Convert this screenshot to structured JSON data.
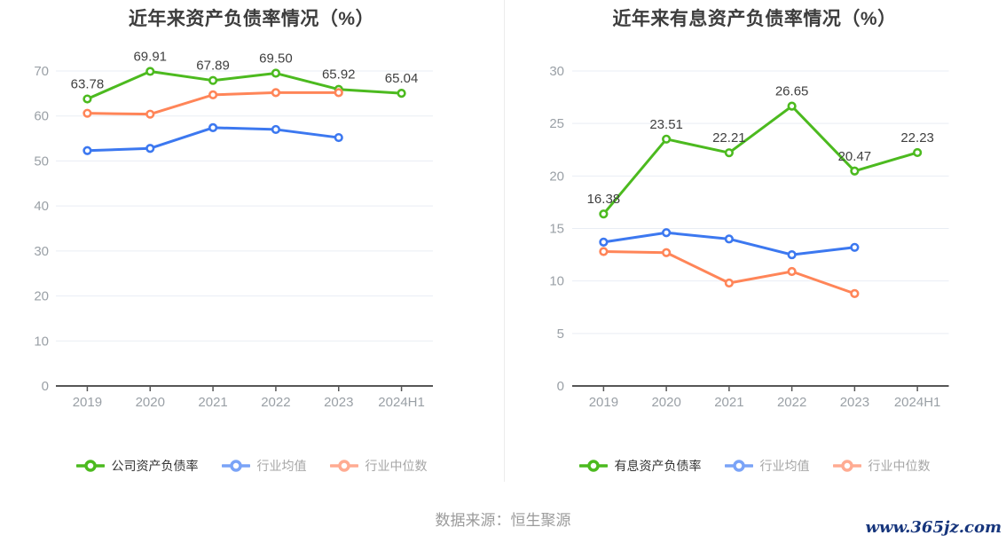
{
  "page": {
    "footer_source": "数据来源：恒生聚源",
    "website": "www.365jz.com",
    "background": "#ffffff"
  },
  "colors": {
    "company_line": "#4cba1f",
    "industry_mean_line": "#3c78f0",
    "industry_median_line": "#ff8558",
    "axis_label": "#9aa0a6",
    "data_label": "#3f3f3f",
    "website_link": "#16357c"
  },
  "chart_data": [
    {
      "type": "line",
      "title": "近年来资产负债率情况（%）",
      "categories": [
        "2019",
        "2020",
        "2021",
        "2022",
        "2023",
        "2024H1"
      ],
      "xlabel": "",
      "ylabel": "",
      "ylim": [
        0,
        70
      ],
      "ytick_step": 10,
      "grid": true,
      "legend_position": "bottom",
      "series": [
        {
          "name": "公司资产负债率",
          "color": "#4cba1f",
          "legend_color": "#4cba1f",
          "label_color": "#333333",
          "values": [
            63.78,
            69.91,
            67.89,
            69.5,
            65.92,
            65.04
          ],
          "point_labels": [
            "63.78",
            "69.91",
            "67.89",
            "69.50",
            "65.92",
            "65.04"
          ]
        },
        {
          "name": "行业均值",
          "color": "#3c78f0",
          "legend_color": "#7aa3f7",
          "label_color": "#a6a6a6",
          "values": [
            52.3,
            52.8,
            57.4,
            57.0,
            55.2,
            null
          ],
          "point_labels": null
        },
        {
          "name": "行业中位数",
          "color": "#ff8558",
          "legend_color": "#ffab92",
          "label_color": "#a6a6a6",
          "values": [
            60.6,
            60.4,
            64.7,
            65.2,
            65.2,
            null
          ],
          "point_labels": null
        }
      ]
    },
    {
      "type": "line",
      "title": "近年来有息资产负债率情况（%）",
      "categories": [
        "2019",
        "2020",
        "2021",
        "2022",
        "2023",
        "2024H1"
      ],
      "xlabel": "",
      "ylabel": "",
      "ylim": [
        0,
        30
      ],
      "ytick_step": 5,
      "grid": true,
      "legend_position": "bottom",
      "series": [
        {
          "name": "有息资产负债率",
          "color": "#4cba1f",
          "legend_color": "#4cba1f",
          "label_color": "#333333",
          "values": [
            16.38,
            23.51,
            22.21,
            26.65,
            20.47,
            22.23
          ],
          "point_labels": [
            "16.38",
            "23.51",
            "22.21",
            "26.65",
            "20.47",
            "22.23"
          ]
        },
        {
          "name": "行业均值",
          "color": "#3c78f0",
          "legend_color": "#7aa3f7",
          "label_color": "#a6a6a6",
          "values": [
            13.7,
            14.6,
            14.0,
            12.5,
            13.2,
            null
          ],
          "point_labels": null
        },
        {
          "name": "行业中位数",
          "color": "#ff8558",
          "legend_color": "#ffab92",
          "label_color": "#a6a6a6",
          "values": [
            12.8,
            12.7,
            9.8,
            10.9,
            8.8,
            null
          ],
          "point_labels": null
        }
      ]
    }
  ]
}
